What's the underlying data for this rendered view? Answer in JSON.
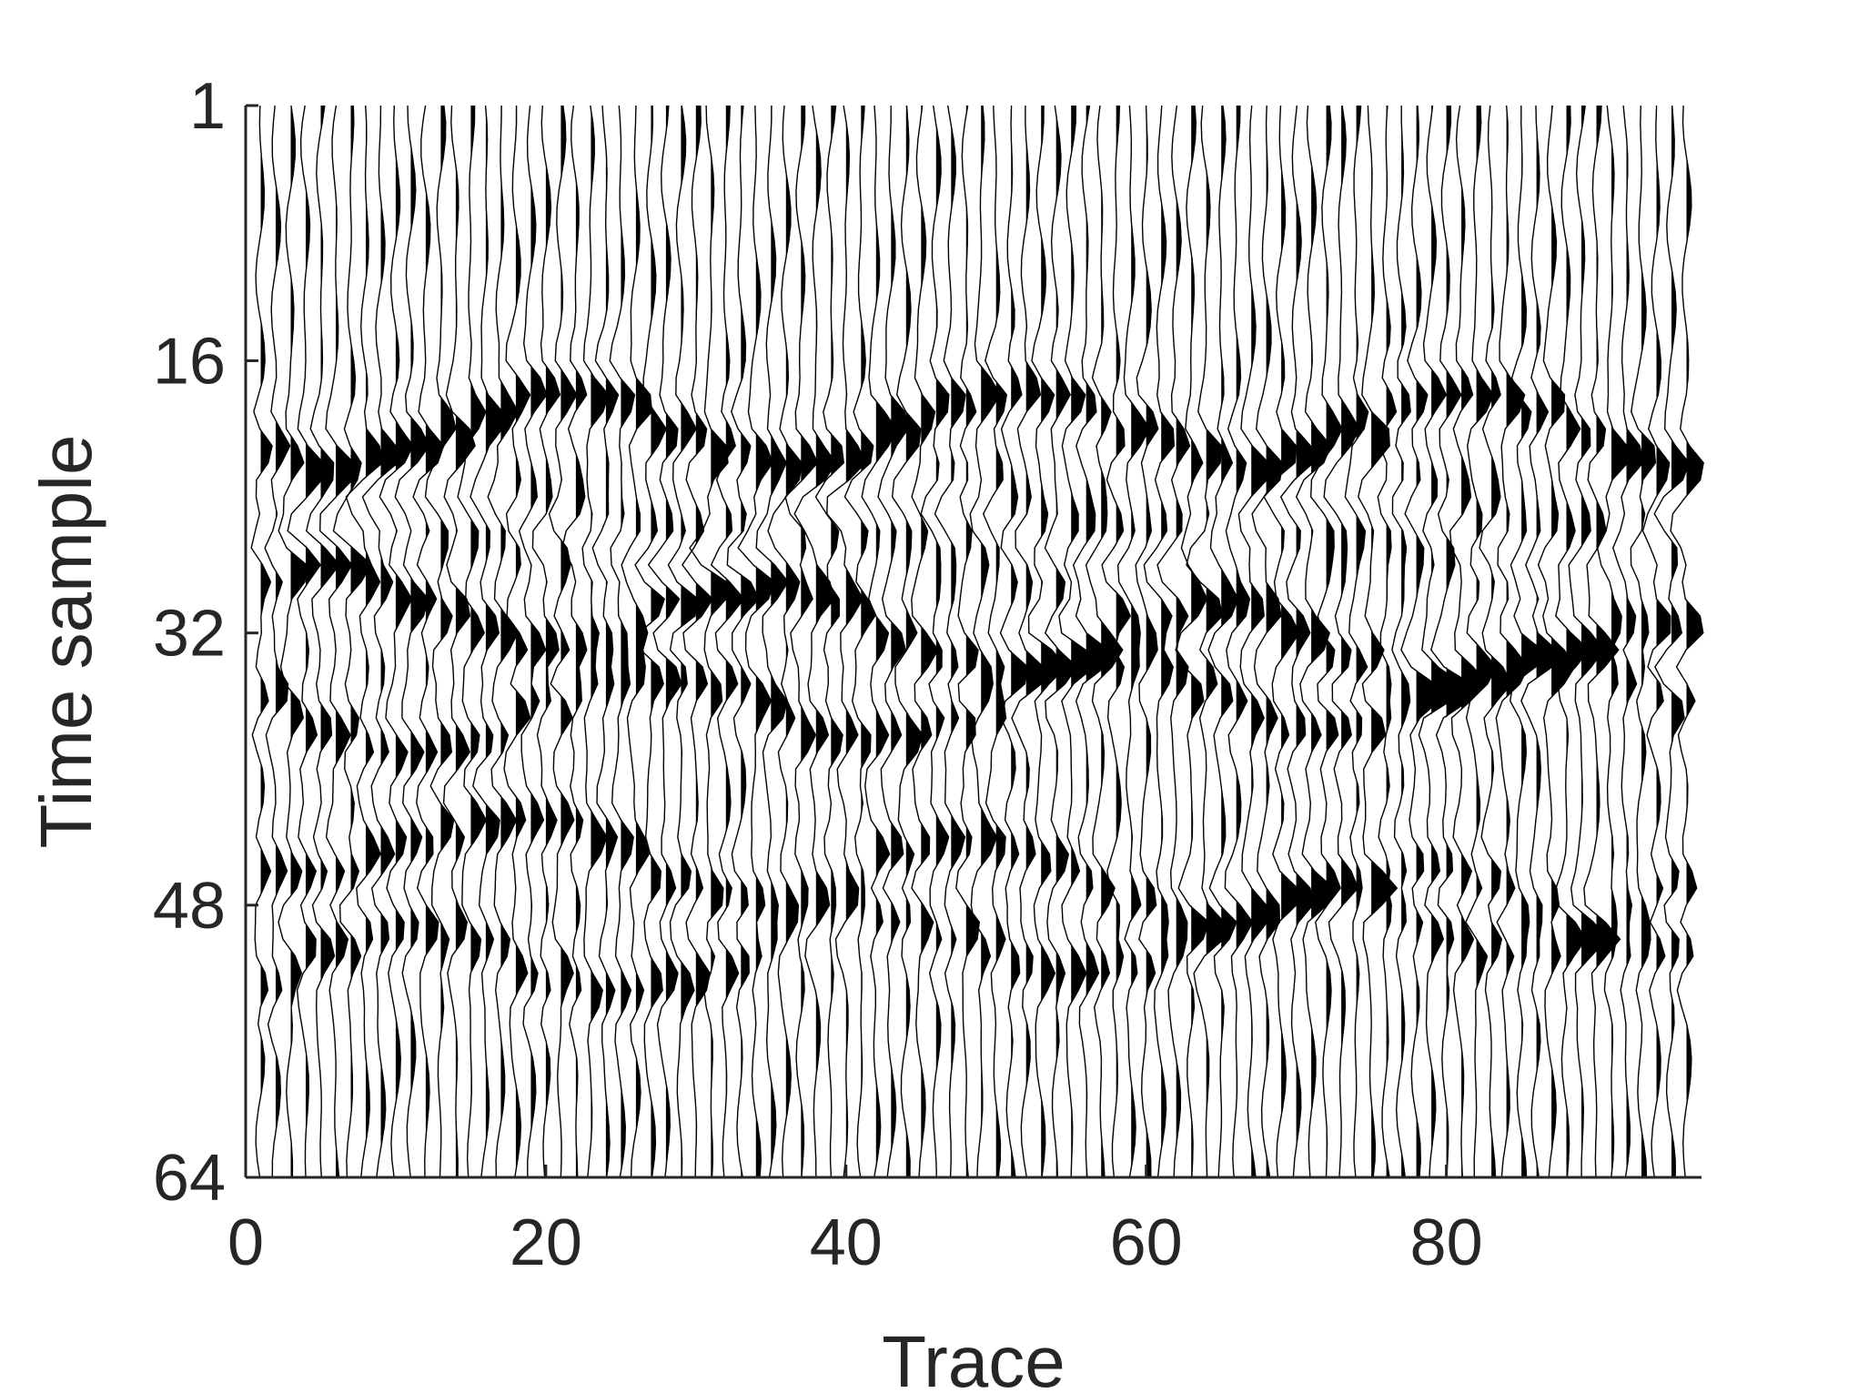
{
  "chart_data": {
    "type": "wiggle",
    "title": "",
    "xlabel": "Trace",
    "ylabel": "Time sample",
    "xlim": [
      0,
      97
    ],
    "ylim": [
      1,
      64
    ],
    "y_reversed": true,
    "x_ticks": [
      0,
      20,
      40,
      60,
      80
    ],
    "y_ticks": [
      1,
      16,
      32,
      48,
      64
    ],
    "n_traces": 96,
    "n_samples": 64,
    "fill": "positive",
    "color": "#000000",
    "events": [
      {
        "t0": 20,
        "slope": 0.0,
        "amplitude": 1.0
      },
      {
        "t0": 26,
        "slope": 0.0,
        "amplitude": -0.8
      },
      {
        "t0": 30,
        "slope": 0.04,
        "amplitude": 1.0
      },
      {
        "t0": 37,
        "slope": -0.02,
        "amplitude": 0.9
      },
      {
        "t0": 44,
        "slope": 0.05,
        "amplitude": 0.8
      },
      {
        "t0": 52,
        "slope": -0.04,
        "amplitude": 0.7
      }
    ]
  }
}
